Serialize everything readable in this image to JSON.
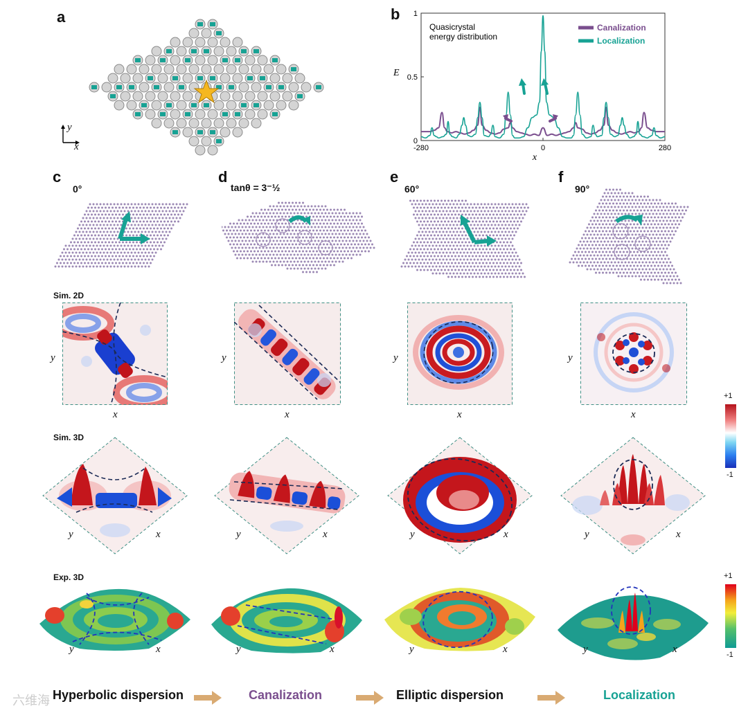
{
  "panels": {
    "a": "a",
    "b": "b",
    "c": "c",
    "d": "d",
    "e": "e",
    "f": "f"
  },
  "panel_a": {
    "axis_y": "y",
    "axis_x": "x"
  },
  "angles": {
    "c": "0°",
    "d": "tanθ = 3⁻½",
    "e": "60°",
    "f": "90°"
  },
  "row_labels": {
    "sim2d": "Sim. 2D",
    "sim3d": "Sim. 3D",
    "exp3d": "Exp. 3D"
  },
  "axis_labels": {
    "x": "x",
    "y": "y"
  },
  "colorbar_sim": {
    "max": "+1",
    "min": "-1"
  },
  "colorbar_exp": {
    "max": "+1",
    "min": "-1"
  },
  "bottom_labels": {
    "hyperbolic": "Hyperbolic dispersion",
    "canalization": "Canalization",
    "elliptic": "Elliptic dispersion",
    "localization": "Localization"
  },
  "watermark": "六维海",
  "colors": {
    "teal": "#17a294",
    "purple": "#7a4e8e",
    "arrow_tan": "#d9aa72",
    "dashed_navy": "#1b2a55",
    "dashed_blue": "#2233bb",
    "border_teal": "#3e8f84"
  },
  "chart_data": {
    "type": "line",
    "title": "Quasicrystal energy distribution",
    "xlabel": "x",
    "ylabel": "E",
    "xlim": [
      -280,
      280
    ],
    "ylim": [
      0,
      1
    ],
    "xticks": [
      "-280",
      "0",
      "280"
    ],
    "yticks": [
      "0",
      "0.5",
      "1"
    ],
    "legend": "top-right",
    "series": [
      {
        "name": "Canalization",
        "color": "#7a4e8e",
        "x": [
          -280,
          -260,
          -250,
          -240,
          -232,
          -226,
          -220,
          -210,
          -200,
          -190,
          -180,
          -170,
          -160,
          -150,
          -145,
          -140,
          -130,
          -120,
          -110,
          -100,
          -90,
          -80,
          -75,
          -70,
          -60,
          -50,
          -40,
          -30,
          -20,
          -10,
          0,
          10,
          20,
          30,
          40,
          50,
          60,
          70,
          75,
          80,
          90,
          100,
          110,
          120,
          130,
          140,
          145,
          150,
          160,
          170,
          180,
          190,
          200,
          210,
          220,
          226,
          232,
          240,
          250,
          260,
          280
        ],
        "y": [
          0.07,
          0.07,
          0.08,
          0.1,
          0.22,
          0.1,
          0.07,
          0.06,
          0.07,
          0.06,
          0.05,
          0.06,
          0.08,
          0.12,
          0.26,
          0.12,
          0.08,
          0.06,
          0.05,
          0.06,
          0.09,
          0.1,
          0.14,
          0.1,
          0.07,
          0.06,
          0.05,
          0.04,
          0.05,
          0.04,
          0.1,
          0.04,
          0.05,
          0.04,
          0.05,
          0.06,
          0.07,
          0.1,
          0.14,
          0.1,
          0.09,
          0.06,
          0.05,
          0.06,
          0.08,
          0.12,
          0.26,
          0.12,
          0.08,
          0.06,
          0.05,
          0.06,
          0.07,
          0.06,
          0.07,
          0.1,
          0.22,
          0.1,
          0.08,
          0.07,
          0.07
        ]
      },
      {
        "name": "Localization",
        "color": "#17a294",
        "x": [
          -280,
          -270,
          -260,
          -255,
          -250,
          -245,
          -240,
          -230,
          -222,
          -218,
          -214,
          -208,
          -200,
          -192,
          -186,
          -182,
          -178,
          -172,
          -165,
          -155,
          -150,
          -145,
          -140,
          -135,
          -125,
          -120,
          -115,
          -110,
          -100,
          -90,
          -85,
          -80,
          -75,
          -70,
          -65,
          -55,
          -45,
          -35,
          -25,
          -15,
          -8,
          -4,
          0,
          4,
          8,
          15,
          25,
          35,
          45,
          55,
          65,
          70,
          75,
          80,
          85,
          90,
          100,
          110,
          115,
          120,
          125,
          135,
          140,
          145,
          150,
          155,
          165,
          172,
          178,
          182,
          186,
          192,
          200,
          208,
          214,
          218,
          222,
          230,
          240,
          245,
          250,
          255,
          260,
          270,
          280
        ],
        "y": [
          0.03,
          0.02,
          0.04,
          0.1,
          0.04,
          0.03,
          0.02,
          0.03,
          0.05,
          0.15,
          0.05,
          0.03,
          0.02,
          0.05,
          0.12,
          0.18,
          0.12,
          0.04,
          0.03,
          0.05,
          0.18,
          0.3,
          0.18,
          0.04,
          0.03,
          0.05,
          0.12,
          0.03,
          0.02,
          0.05,
          0.2,
          0.38,
          0.2,
          0.04,
          0.02,
          0.02,
          0.03,
          0.1,
          0.18,
          0.2,
          0.3,
          0.7,
          0.98,
          0.7,
          0.3,
          0.2,
          0.18,
          0.1,
          0.03,
          0.02,
          0.02,
          0.04,
          0.2,
          0.38,
          0.2,
          0.05,
          0.02,
          0.03,
          0.12,
          0.05,
          0.03,
          0.04,
          0.18,
          0.3,
          0.18,
          0.05,
          0.03,
          0.04,
          0.12,
          0.18,
          0.12,
          0.05,
          0.02,
          0.03,
          0.05,
          0.15,
          0.05,
          0.03,
          0.02,
          0.03,
          0.04,
          0.1,
          0.04,
          0.02,
          0.03
        ]
      }
    ]
  }
}
